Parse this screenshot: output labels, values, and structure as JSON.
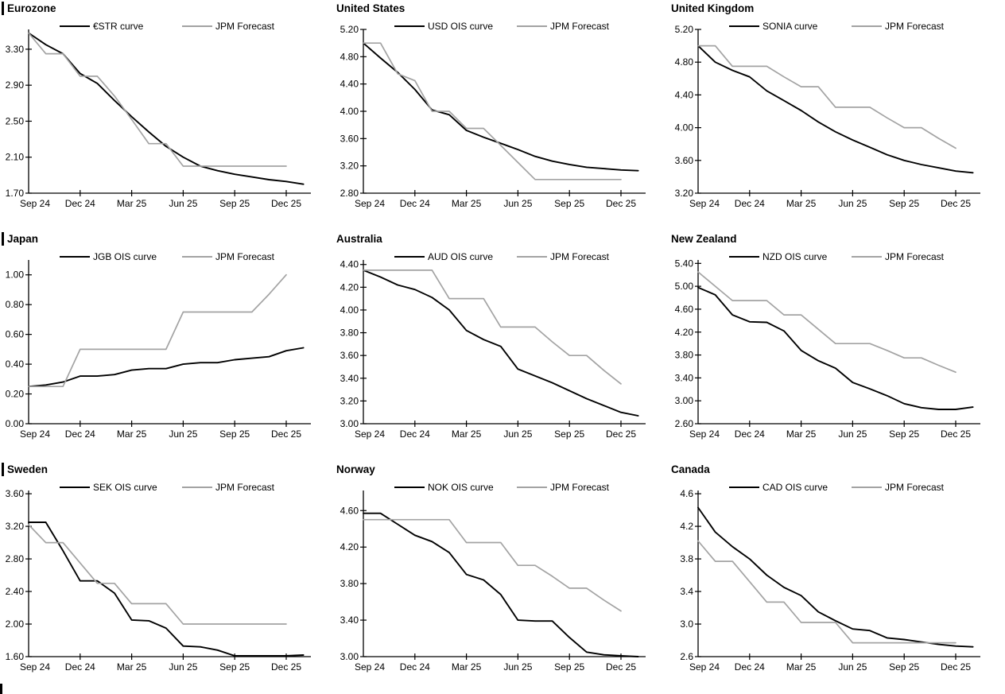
{
  "figure": {
    "background": "#ffffff",
    "description_colors": {
      "black": "#000000",
      "gray": "#a3a3a3",
      "axis": "#000000"
    },
    "bottom_left_partial_title_bar": true
  },
  "shared_axis": {
    "x_labels": [
      "Sep 24",
      "Dec 24",
      "Mar 25",
      "Jun 25",
      "Sep 25",
      "Dec 25"
    ],
    "x_tick_months": [
      0,
      3,
      6,
      9,
      12,
      15
    ]
  },
  "chart_data": [
    {
      "type": "line",
      "title": "Eurozone",
      "title_bar": true,
      "ylim": [
        1.7,
        3.52
      ],
      "yticks": [
        "1.70",
        "2.10",
        "2.50",
        "2.90",
        "3.30"
      ],
      "series": [
        {
          "name": "€STR curve",
          "color_key": "black",
          "values": [
            3.48,
            3.35,
            3.25,
            3.03,
            2.92,
            2.73,
            2.55,
            2.38,
            2.22,
            2.1,
            2.0,
            1.95,
            1.91,
            1.88,
            1.85,
            1.83,
            1.8
          ]
        },
        {
          "name": "JPM Forecast",
          "color_key": "gray",
          "values": [
            3.48,
            3.25,
            3.25,
            3.0,
            3.0,
            2.78,
            2.52,
            2.25,
            2.25,
            2.0,
            2.0,
            2.0,
            2.0,
            2.0,
            2.0,
            2.0
          ]
        }
      ]
    },
    {
      "type": "line",
      "title": "United States",
      "title_bar": false,
      "ylim": [
        2.8,
        5.2
      ],
      "yticks": [
        "2.80",
        "3.20",
        "3.60",
        "4.00",
        "4.40",
        "4.80",
        "5.20"
      ],
      "series": [
        {
          "name": "USD OIS curve",
          "color_key": "black",
          "values": [
            5.0,
            4.78,
            4.57,
            4.32,
            4.02,
            3.95,
            3.72,
            3.62,
            3.53,
            3.44,
            3.34,
            3.27,
            3.22,
            3.18,
            3.16,
            3.14,
            3.13
          ]
        },
        {
          "name": "JPM Forecast",
          "color_key": "gray",
          "values": [
            5.0,
            5.0,
            4.55,
            4.45,
            4.0,
            4.0,
            3.75,
            3.75,
            3.5,
            3.25,
            3.0,
            3.0,
            3.0,
            3.0,
            3.0,
            3.0
          ]
        }
      ]
    },
    {
      "type": "line",
      "title": "United Kingdom",
      "title_bar": false,
      "ylim": [
        3.2,
        5.2
      ],
      "yticks": [
        "3.20",
        "3.60",
        "4.00",
        "4.40",
        "4.80",
        "5.20"
      ],
      "series": [
        {
          "name": "SONIA curve",
          "color_key": "black",
          "values": [
            5.0,
            4.8,
            4.7,
            4.62,
            4.45,
            4.33,
            4.21,
            4.07,
            3.95,
            3.85,
            3.76,
            3.67,
            3.6,
            3.55,
            3.51,
            3.47,
            3.45
          ]
        },
        {
          "name": "JPM Forecast",
          "color_key": "gray",
          "values": [
            5.0,
            5.0,
            4.75,
            4.75,
            4.75,
            4.62,
            4.5,
            4.5,
            4.25,
            4.25,
            4.25,
            4.12,
            4.0,
            4.0,
            3.87,
            3.75
          ]
        }
      ]
    },
    {
      "type": "line",
      "title": "Japan",
      "title_bar": true,
      "ylim": [
        0.0,
        1.1
      ],
      "yticks": [
        "0.00",
        "0.20",
        "0.40",
        "0.60",
        "0.80",
        "1.00"
      ],
      "series": [
        {
          "name": "JGB OIS curve",
          "color_key": "black",
          "values": [
            0.25,
            0.26,
            0.28,
            0.32,
            0.32,
            0.33,
            0.36,
            0.37,
            0.37,
            0.4,
            0.41,
            0.41,
            0.43,
            0.44,
            0.45,
            0.49,
            0.51
          ]
        },
        {
          "name": "JPM Forecast",
          "color_key": "gray",
          "values": [
            0.25,
            0.25,
            0.25,
            0.5,
            0.5,
            0.5,
            0.5,
            0.5,
            0.5,
            0.75,
            0.75,
            0.75,
            0.75,
            0.75,
            0.87,
            1.0
          ]
        }
      ]
    },
    {
      "type": "line",
      "title": "Australia",
      "title_bar": false,
      "ylim": [
        3.0,
        4.44
      ],
      "yticks": [
        "3.00",
        "3.20",
        "3.40",
        "3.60",
        "3.80",
        "4.00",
        "4.20",
        "4.40"
      ],
      "series": [
        {
          "name": "AUD OIS curve",
          "color_key": "black",
          "values": [
            4.35,
            4.29,
            4.22,
            4.18,
            4.11,
            4.0,
            3.82,
            3.74,
            3.68,
            3.48,
            3.42,
            3.36,
            3.29,
            3.22,
            3.16,
            3.1,
            3.07
          ]
        },
        {
          "name": "JPM Forecast",
          "color_key": "gray",
          "values": [
            4.35,
            4.35,
            4.35,
            4.35,
            4.35,
            4.1,
            4.1,
            4.1,
            3.85,
            3.85,
            3.85,
            3.72,
            3.6,
            3.6,
            3.47,
            3.35
          ]
        }
      ]
    },
    {
      "type": "line",
      "title": "New Zealand",
      "title_bar": false,
      "ylim": [
        2.6,
        5.46
      ],
      "yticks": [
        "2.60",
        "3.00",
        "3.40",
        "3.80",
        "4.20",
        "4.60",
        "5.00",
        "5.40"
      ],
      "series": [
        {
          "name": "NZD OIS curve",
          "color_key": "black",
          "values": [
            4.98,
            4.85,
            4.5,
            4.38,
            4.37,
            4.22,
            3.88,
            3.7,
            3.57,
            3.32,
            3.21,
            3.09,
            2.95,
            2.88,
            2.85,
            2.85,
            2.89
          ]
        },
        {
          "name": "JPM Forecast",
          "color_key": "gray",
          "values": [
            5.25,
            5.0,
            4.75,
            4.75,
            4.75,
            4.5,
            4.5,
            4.25,
            4.0,
            4.0,
            4.0,
            3.88,
            3.75,
            3.75,
            3.62,
            3.5
          ]
        }
      ]
    },
    {
      "type": "line",
      "title": "Sweden",
      "title_bar": true,
      "ylim": [
        1.6,
        3.64
      ],
      "yticks": [
        "1.60",
        "2.00",
        "2.40",
        "2.80",
        "3.20",
        "3.60"
      ],
      "series": [
        {
          "name": "SEK OIS curve",
          "color_key": "black",
          "values": [
            3.25,
            3.25,
            2.9,
            2.53,
            2.53,
            2.38,
            2.05,
            2.04,
            1.95,
            1.73,
            1.72,
            1.68,
            1.61,
            1.61,
            1.61,
            1.61,
            1.62
          ]
        },
        {
          "name": "JPM Forecast",
          "color_key": "gray",
          "values": [
            3.22,
            3.0,
            3.0,
            2.75,
            2.5,
            2.5,
            2.25,
            2.25,
            2.25,
            2.0,
            2.0,
            2.0,
            2.0,
            2.0,
            2.0,
            2.0
          ]
        }
      ]
    },
    {
      "type": "line",
      "title": "Norway",
      "title_bar": false,
      "ylim": [
        3.0,
        4.82
      ],
      "yticks": [
        "3.00",
        "3.40",
        "3.80",
        "4.20",
        "4.60"
      ],
      "series": [
        {
          "name": "NOK OIS curve",
          "color_key": "black",
          "values": [
            4.57,
            4.57,
            4.45,
            4.33,
            4.26,
            4.14,
            3.9,
            3.84,
            3.68,
            3.4,
            3.39,
            3.39,
            3.21,
            3.05,
            3.02,
            3.01,
            3.0
          ]
        },
        {
          "name": "JPM Forecast",
          "color_key": "gray",
          "values": [
            4.5,
            4.5,
            4.5,
            4.5,
            4.5,
            4.5,
            4.25,
            4.25,
            4.25,
            4.0,
            4.0,
            3.88,
            3.75,
            3.75,
            3.62,
            3.5
          ]
        }
      ]
    },
    {
      "type": "line",
      "title": "Canada",
      "title_bar": false,
      "ylim": [
        2.6,
        4.64
      ],
      "yticks": [
        "2.6",
        "3.0",
        "3.4",
        "3.8",
        "4.2",
        "4.6"
      ],
      "series": [
        {
          "name": "CAD OIS curve",
          "color_key": "black",
          "values": [
            4.43,
            4.13,
            3.95,
            3.8,
            3.6,
            3.45,
            3.35,
            3.15,
            3.04,
            2.94,
            2.92,
            2.83,
            2.81,
            2.78,
            2.75,
            2.73,
            2.72
          ]
        },
        {
          "name": "JPM Forecast",
          "color_key": "gray",
          "values": [
            4.02,
            3.77,
            3.77,
            3.52,
            3.27,
            3.27,
            3.02,
            3.02,
            3.02,
            2.77,
            2.77,
            2.77,
            2.77,
            2.77,
            2.77,
            2.77
          ]
        }
      ]
    }
  ]
}
